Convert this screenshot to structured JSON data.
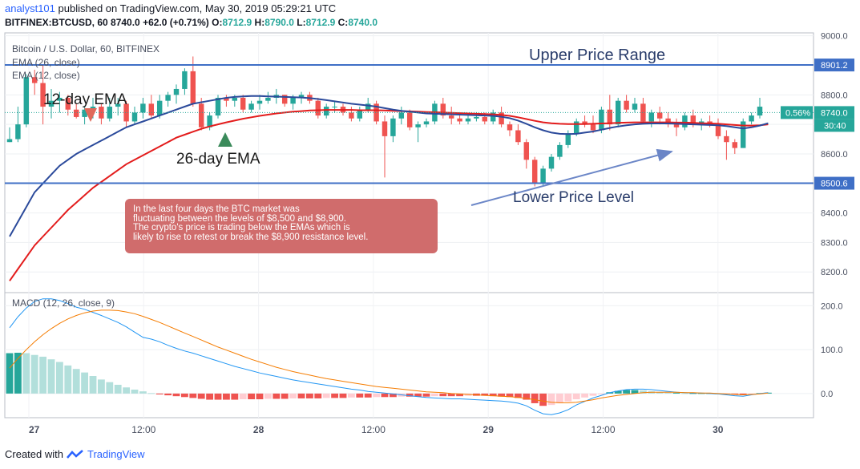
{
  "header": {
    "user": "analyst101",
    "published": "published on TradingView.com, May 30, 2019 05:29:21 UTC",
    "symbol_line": "BITFINEX:BTCUSD, 60",
    "price": "8740.0",
    "change": "+62.0 (+0.71%)",
    "o_label": "O:",
    "o_value": "8712.9",
    "h_label": "H:",
    "h_value": "8790.0",
    "l_label": "L:",
    "l_value": "8712.9",
    "c_label": "C:",
    "c_value": "8740.0"
  },
  "legend": {
    "title": "Bitcoin / U.S. Dollar, 60, BITFINEX",
    "ema_slow": "EMA (26, close)",
    "ema_fast": "EMA (12, close)",
    "macd": "MACD (12, 26, close, 9)"
  },
  "annotations": {
    "upper": "Upper Price Range",
    "lower": "Lower Price Level",
    "ema12": "12-day EMA",
    "ema26": "26-day EMA",
    "note_lines": [
      "In the last four days the BTC market was",
      "fluctuating between the levels of $8,500 and $8,900.",
      "The crypto's price is trading below the EMAs which is",
      "likely to rise to retest or break the $8,900 resistance level."
    ]
  },
  "badges": {
    "upper_level": "8901.2",
    "lower_level": "8500.6",
    "current_price": "8740.0",
    "change_pct": "0.56%",
    "countdown": "30:40"
  },
  "footer": {
    "created_with": "Created with",
    "brand": "TradingView"
  },
  "colors": {
    "up": "#26a69a",
    "down": "#ef5350",
    "ema_fast": "#2b4a9b",
    "ema_slow": "#e31c1c",
    "level_line": "#3f6fc6",
    "macd_line": "#2196f3",
    "signal_line": "#f57c00",
    "hist_up_strong": "#26a69a",
    "hist_up_weak": "#b2dfdb",
    "hist_down_strong": "#ef5350",
    "hist_down_weak": "#ffcdd2",
    "note_box": "#d06c6c"
  },
  "chart_data": [
    {
      "type": "candlestick",
      "title": "Bitcoin / U.S. Dollar, 60, BITFINEX",
      "x_ticks": [
        "27",
        "12:00",
        "28",
        "12:00",
        "29",
        "12:00",
        "30"
      ],
      "y_ticks": [
        "9000.0",
        "8900.0",
        "8800.0",
        "8700.0",
        "8600.0",
        "8500.0",
        "8400.0",
        "8300.0",
        "8200.0"
      ],
      "ylim": [
        8130,
        9010
      ],
      "levels": [
        8901.2,
        8500.6
      ],
      "current_price": 8740.0,
      "ohlc": [
        [
          8640,
          8690,
          8640,
          8650
        ],
        [
          8650,
          8760,
          8640,
          8700
        ],
        [
          8700,
          8870,
          8690,
          8860
        ],
        [
          8860,
          8885,
          8800,
          8840
        ],
        [
          8840,
          8900,
          8700,
          8760
        ],
        [
          8760,
          8820,
          8720,
          8780
        ],
        [
          8780,
          8810,
          8740,
          8790
        ],
        [
          8790,
          8800,
          8730,
          8750
        ],
        [
          8750,
          8770,
          8720,
          8725
        ],
        [
          8725,
          8760,
          8700,
          8750
        ],
        [
          8750,
          8790,
          8720,
          8760
        ],
        [
          8760,
          8770,
          8700,
          8720
        ],
        [
          8720,
          8790,
          8710,
          8760
        ],
        [
          8760,
          8790,
          8730,
          8770
        ],
        [
          8770,
          8780,
          8690,
          8710
        ],
        [
          8710,
          8760,
          8700,
          8740
        ],
        [
          8740,
          8790,
          8720,
          8770
        ],
        [
          8770,
          8800,
          8720,
          8730
        ],
        [
          8730,
          8800,
          8720,
          8780
        ],
        [
          8780,
          8810,
          8760,
          8800
        ],
        [
          8800,
          8835,
          8770,
          8820
        ],
        [
          8820,
          8890,
          8800,
          8880
        ],
        [
          8880,
          8930,
          8760,
          8770
        ],
        [
          8770,
          8790,
          8680,
          8690
        ],
        [
          8690,
          8740,
          8680,
          8730
        ],
        [
          8730,
          8800,
          8720,
          8790
        ],
        [
          8790,
          8800,
          8760,
          8780
        ],
        [
          8780,
          8800,
          8760,
          8790
        ],
        [
          8790,
          8800,
          8740,
          8750
        ],
        [
          8750,
          8780,
          8740,
          8770
        ],
        [
          8770,
          8800,
          8750,
          8780
        ],
        [
          8780,
          8810,
          8770,
          8790
        ],
        [
          8790,
          8820,
          8770,
          8800
        ],
        [
          8800,
          8800,
          8760,
          8770
        ],
        [
          8770,
          8800,
          8750,
          8790
        ],
        [
          8790,
          8810,
          8770,
          8800
        ],
        [
          8800,
          8810,
          8770,
          8780
        ],
        [
          8780,
          8790,
          8720,
          8730
        ],
        [
          8730,
          8770,
          8720,
          8760
        ],
        [
          8760,
          8780,
          8740,
          8760
        ],
        [
          8760,
          8770,
          8730,
          8740
        ],
        [
          8740,
          8760,
          8710,
          8720
        ],
        [
          8720,
          8760,
          8710,
          8750
        ],
        [
          8750,
          8790,
          8740,
          8770
        ],
        [
          8770,
          8780,
          8700,
          8710
        ],
        [
          8710,
          8730,
          8520,
          8660
        ],
        [
          8660,
          8730,
          8640,
          8720
        ],
        [
          8720,
          8760,
          8700,
          8740
        ],
        [
          8740,
          8750,
          8680,
          8690
        ],
        [
          8690,
          8710,
          8640,
          8700
        ],
        [
          8700,
          8720,
          8690,
          8710
        ],
        [
          8710,
          8780,
          8700,
          8770
        ],
        [
          8770,
          8790,
          8720,
          8730
        ],
        [
          8730,
          8760,
          8700,
          8720
        ],
        [
          8720,
          8740,
          8700,
          8710
        ],
        [
          8710,
          8730,
          8700,
          8720
        ],
        [
          8720,
          8740,
          8710,
          8725
        ],
        [
          8725,
          8740,
          8700,
          8710
        ],
        [
          8710,
          8750,
          8700,
          8740
        ],
        [
          8740,
          8760,
          8690,
          8700
        ],
        [
          8700,
          8710,
          8660,
          8680
        ],
        [
          8680,
          8700,
          8630,
          8640
        ],
        [
          8640,
          8650,
          8550,
          8580
        ],
        [
          8580,
          8590,
          8490,
          8500
        ],
        [
          8500,
          8560,
          8490,
          8550
        ],
        [
          8550,
          8600,
          8540,
          8590
        ],
        [
          8590,
          8640,
          8580,
          8630
        ],
        [
          8630,
          8680,
          8620,
          8670
        ],
        [
          8670,
          8720,
          8660,
          8710
        ],
        [
          8710,
          8730,
          8690,
          8700
        ],
        [
          8700,
          8730,
          8670,
          8680
        ],
        [
          8680,
          8760,
          8670,
          8750
        ],
        [
          8750,
          8800,
          8680,
          8700
        ],
        [
          8700,
          8790,
          8690,
          8780
        ],
        [
          8780,
          8800,
          8740,
          8750
        ],
        [
          8750,
          8790,
          8740,
          8770
        ],
        [
          8770,
          8790,
          8700,
          8710
        ],
        [
          8710,
          8750,
          8690,
          8740
        ],
        [
          8740,
          8760,
          8700,
          8720
        ],
        [
          8720,
          8740,
          8690,
          8700
        ],
        [
          8700,
          8720,
          8660,
          8690
        ],
        [
          8690,
          8740,
          8680,
          8730
        ],
        [
          8730,
          8750,
          8690,
          8700
        ],
        [
          8700,
          8720,
          8680,
          8710
        ],
        [
          8710,
          8730,
          8690,
          8700
        ],
        [
          8700,
          8720,
          8650,
          8660
        ],
        [
          8660,
          8680,
          8580,
          8640
        ],
        [
          8640,
          8650,
          8600,
          8620
        ],
        [
          8620,
          8720,
          8620,
          8710
        ],
        [
          8710,
          8740,
          8700,
          8730
        ],
        [
          8730,
          8790,
          8720,
          8760
        ]
      ],
      "series": [
        {
          "name": "EMA (12, close)",
          "values": [
            8320,
            8370,
            8420,
            8470,
            8500,
            8530,
            8560,
            8580,
            8600,
            8615,
            8630,
            8645,
            8660,
            8675,
            8690,
            8700,
            8710,
            8720,
            8730,
            8740,
            8750,
            8760,
            8770,
            8775,
            8780,
            8785,
            8790,
            8793,
            8795,
            8796,
            8796,
            8795,
            8794,
            8793,
            8792,
            8791,
            8789,
            8786,
            8782,
            8778,
            8774,
            8770,
            8767,
            8764,
            8760,
            8755,
            8750,
            8746,
            8743,
            8740,
            8737,
            8736,
            8735,
            8734,
            8733,
            8732,
            8731,
            8730,
            8729,
            8726,
            8721,
            8713,
            8702,
            8690,
            8680,
            8672,
            8668,
            8667,
            8668,
            8672,
            8676,
            8682,
            8688,
            8693,
            8697,
            8700,
            8702,
            8703,
            8703,
            8703,
            8702,
            8701,
            8700,
            8699,
            8698,
            8697,
            8694,
            8690,
            8686,
            8690,
            8696,
            8704
          ]
        },
        {
          "name": "EMA (26, close)",
          "values": [
            8170,
            8210,
            8250,
            8290,
            8320,
            8350,
            8380,
            8410,
            8435,
            8460,
            8485,
            8505,
            8525,
            8545,
            8565,
            8580,
            8595,
            8610,
            8625,
            8640,
            8655,
            8665,
            8675,
            8685,
            8693,
            8700,
            8707,
            8713,
            8719,
            8724,
            8729,
            8733,
            8737,
            8740,
            8743,
            8745,
            8747,
            8748,
            8749,
            8749,
            8749,
            8749,
            8748,
            8748,
            8748,
            8747,
            8746,
            8745,
            8744,
            8743,
            8742,
            8741,
            8740,
            8739,
            8738,
            8737,
            8736,
            8735,
            8734,
            8732,
            8729,
            8724,
            8718,
            8712,
            8707,
            8704,
            8702,
            8701,
            8701,
            8701,
            8702,
            8703,
            8704,
            8705,
            8706,
            8707,
            8707,
            8707,
            8707,
            8707,
            8706,
            8706,
            8705,
            8704,
            8703,
            8702,
            8700,
            8698,
            8696,
            8696,
            8697,
            8700
          ]
        }
      ]
    },
    {
      "type": "bar",
      "title": "MACD (12, 26, close, 9)",
      "y_ticks": [
        "200.0",
        "100.0",
        "0.0"
      ],
      "ylim": [
        -55,
        230
      ],
      "histogram": [
        92,
        93,
        92,
        88,
        84,
        78,
        72,
        64,
        56,
        48,
        40,
        32,
        26,
        20,
        14,
        9,
        5,
        1,
        -2,
        -4,
        -6,
        -8,
        -10,
        -12,
        -14,
        -14,
        -14,
        -14,
        -13,
        -13,
        -13,
        -12,
        -12,
        -12,
        -11,
        -11,
        -11,
        -11,
        -10,
        -10,
        -10,
        -9,
        -9,
        -9,
        -8,
        -8,
        -8,
        -7,
        -7,
        -7,
        -7,
        -6,
        -6,
        -6,
        -6,
        -5,
        -5,
        -5,
        -6,
        -7,
        -8,
        -10,
        -14,
        -22,
        -28,
        -26,
        -22,
        -18,
        -13,
        -9,
        -5,
        -1,
        3,
        6,
        8,
        8,
        7,
        5,
        3,
        2,
        2,
        1,
        1,
        1,
        1,
        0,
        -1,
        -2,
        -3,
        -1,
        1,
        2
      ],
      "series": [
        {
          "name": "MACD",
          "values": [
            150,
            175,
            195,
            210,
            216,
            216,
            212,
            205,
            197,
            192,
            185,
            178,
            170,
            162,
            152,
            140,
            128,
            124,
            118,
            110,
            103,
            97,
            92,
            86,
            80,
            74,
            68,
            62,
            57,
            52,
            47,
            43,
            39,
            35,
            31,
            28,
            25,
            22,
            19,
            16,
            13,
            10,
            8,
            5,
            3,
            1,
            -1,
            -3,
            -5,
            -7,
            -9,
            -10,
            -11,
            -12,
            -12,
            -13,
            -14,
            -15,
            -16,
            -17,
            -19,
            -22,
            -28,
            -38,
            -46,
            -48,
            -44,
            -37,
            -26,
            -18,
            -10,
            -4,
            2,
            6,
            9,
            10,
            10,
            9,
            7,
            5,
            3,
            2,
            1,
            1,
            0,
            -1,
            -3,
            -5,
            -6,
            -3,
            0,
            2
          ]
        },
        {
          "name": "Signal",
          "values": [
            58,
            80,
            100,
            118,
            134,
            148,
            160,
            170,
            178,
            184,
            188,
            190,
            190,
            189,
            186,
            182,
            176,
            169,
            162,
            154,
            146,
            138,
            130,
            122,
            114,
            106,
            99,
            92,
            85,
            78,
            72,
            66,
            60,
            55,
            50,
            46,
            42,
            38,
            34,
            31,
            28,
            25,
            22,
            19,
            16,
            14,
            12,
            10,
            8,
            6,
            4,
            3,
            2,
            0,
            -1,
            -2,
            -3,
            -4,
            -5,
            -6,
            -7,
            -9,
            -11,
            -14,
            -17,
            -20,
            -21,
            -21,
            -20,
            -17,
            -14,
            -10,
            -7,
            -4,
            -2,
            0,
            2,
            3,
            3,
            3,
            3,
            2,
            2,
            1,
            1,
            0,
            -1,
            -2,
            -3,
            -2,
            -1,
            1
          ]
        }
      ]
    }
  ]
}
